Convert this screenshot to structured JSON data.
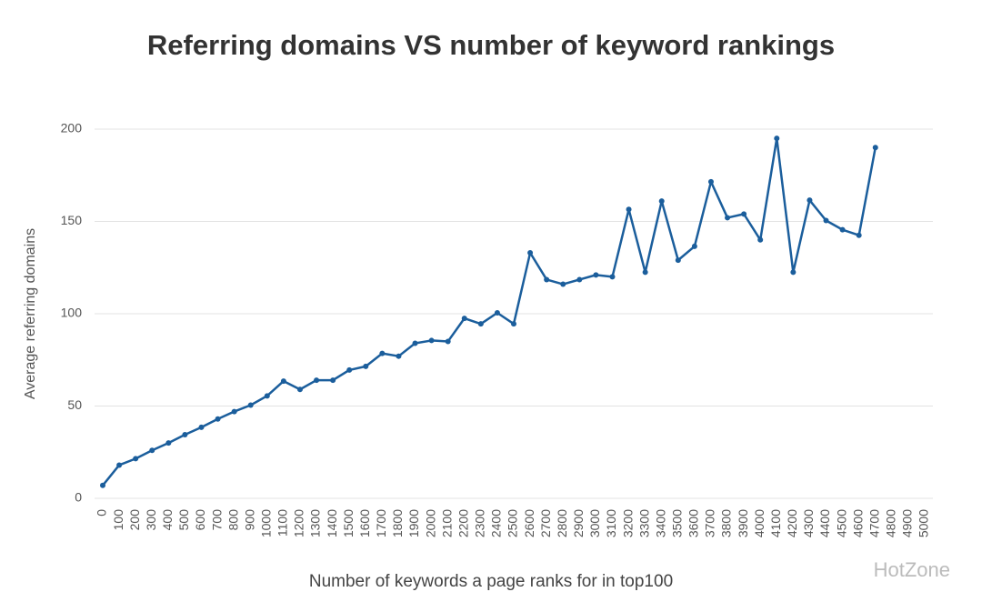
{
  "chart_data": {
    "type": "line",
    "title": "Referring domains VS number of keyword rankings",
    "x_label": "Number of keywords a page ranks for in top100",
    "y_label": "Average referring domains",
    "watermark": "HotZone",
    "categories": [
      "0",
      "100",
      "200",
      "300",
      "400",
      "500",
      "600",
      "700",
      "800",
      "900",
      "1000",
      "1100",
      "1200",
      "1300",
      "1400",
      "1500",
      "1600",
      "1700",
      "1800",
      "1900",
      "2000",
      "2100",
      "2200",
      "2300",
      "2400",
      "2500",
      "2600",
      "2700",
      "2800",
      "2900",
      "3000",
      "3100",
      "3200",
      "3300",
      "3400",
      "3500",
      "3600",
      "3700",
      "3800",
      "3900",
      "4000",
      "4100",
      "4200",
      "4300",
      "4400",
      "4500",
      "4600",
      "4700",
      "4800",
      "4900",
      "5000"
    ],
    "series": [
      {
        "name": "Average referring domains",
        "color": "#1b5e9c",
        "values": [
          7,
          18,
          21.5,
          26,
          30,
          34.5,
          38.5,
          43,
          47,
          50.5,
          55.5,
          63.5,
          59,
          64,
          64,
          69.5,
          71.5,
          78.5,
          77,
          84,
          85.5,
          85,
          97.5,
          94.5,
          100.5,
          94.5,
          133,
          118.5,
          116,
          118.5,
          121,
          120,
          156.5,
          122.5,
          161,
          129,
          136.5,
          171.5,
          152,
          154,
          140,
          195,
          122.5,
          161.5,
          150.5,
          145.5,
          142.5,
          190,
          null,
          null,
          null
        ]
      }
    ],
    "ylim": [
      0,
      200
    ],
    "yticks": [
      0,
      50,
      100,
      150,
      200
    ],
    "grid": true
  }
}
